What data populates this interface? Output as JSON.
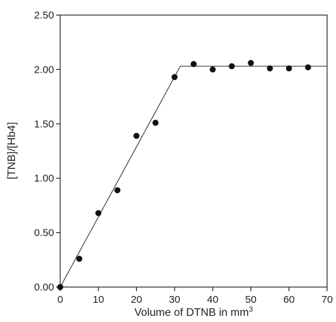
{
  "chart_data": {
    "type": "scatter",
    "title": "",
    "xlabel": "Volume of DTNB in mm",
    "xlabel_superscript": "3",
    "ylabel": "[TNB]/[Hb4]",
    "xlim": [
      0,
      70
    ],
    "ylim": [
      0,
      2.5
    ],
    "x_ticks": [
      "0",
      "10",
      "20",
      "30",
      "40",
      "50",
      "60",
      "70"
    ],
    "y_ticks": [
      "0.00",
      "0.50",
      "1.00",
      "1.50",
      "2.00",
      "2.50"
    ],
    "grid": false,
    "legend": "none",
    "marker_color": "#111111",
    "line_color": "#333333",
    "series": [
      {
        "points": [
          [
            0,
            0.0
          ],
          [
            5,
            0.26
          ],
          [
            10,
            0.68
          ],
          [
            15,
            0.89
          ],
          [
            20,
            1.39
          ],
          [
            25,
            1.51
          ],
          [
            30,
            1.93
          ],
          [
            35,
            2.05
          ],
          [
            40,
            2.0
          ],
          [
            45,
            2.03
          ],
          [
            50,
            2.06
          ],
          [
            55,
            2.01
          ],
          [
            60,
            2.01
          ],
          [
            65,
            2.02
          ]
        ]
      }
    ],
    "fit_line": [
      [
        0,
        0.0
      ],
      [
        31.5,
        2.03
      ],
      [
        70,
        2.03
      ]
    ]
  }
}
